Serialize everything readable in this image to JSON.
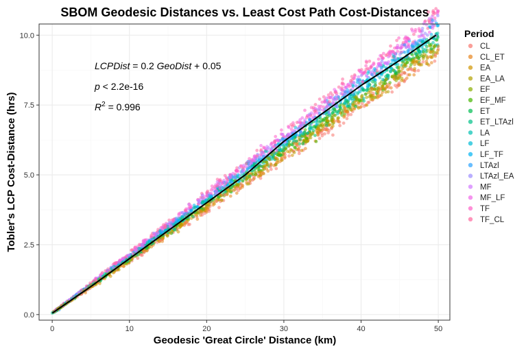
{
  "chart_data": {
    "type": "scatter",
    "title": "SBOM Geodesic Distances vs. Least Cost Path Cost-Distances",
    "xlabel": "Geodesic 'Great Circle' Distance (km)",
    "ylabel": "Tobler's LCP Cost-Distance (hrs)",
    "xlim": [
      -1.7,
      51.5
    ],
    "ylim": [
      -0.2,
      10.4
    ],
    "x_ticks": [
      0,
      10,
      20,
      30,
      40,
      50
    ],
    "y_ticks": [
      0.0,
      2.5,
      5.0,
      7.5,
      10.0
    ],
    "x_tick_labels": [
      "0",
      "10",
      "20",
      "30",
      "40",
      "50"
    ],
    "y_tick_labels": [
      "0.0",
      "2.5",
      "5.0",
      "7.5",
      "10.0"
    ],
    "grid": true,
    "legend": {
      "title": "Period",
      "position": "right",
      "entries": [
        "CL",
        "CL_ET",
        "EA",
        "EA_LA",
        "EF",
        "EF_MF",
        "ET",
        "ET_LTAzl",
        "LA",
        "LF",
        "LF_TF",
        "LTAzl",
        "LTAzl_EA",
        "MF",
        "MF_LF",
        "TF",
        "TF_CL"
      ]
    },
    "series_colors": [
      "#F8766D",
      "#E7851E",
      "#D09400",
      "#B2A100",
      "#89AC00",
      "#45B500",
      "#00BC51",
      "#00C087",
      "#00C0B2",
      "#00BCD6",
      "#00B3F2",
      "#29A3FF",
      "#9C8DFF",
      "#D277FF",
      "#F166E8",
      "#FF61C7",
      "#FF689E"
    ],
    "point_cloud": {
      "x_range": [
        0,
        50
      ],
      "relation": "y ≈ 0.2·x + 0.05",
      "spread_at_x50": 0.4
    },
    "regression_line": {
      "x": [
        0,
        5,
        10,
        15,
        20,
        25,
        30,
        35,
        40,
        45,
        49.7
      ],
      "y": [
        0.05,
        1.0,
        2.0,
        3.0,
        4.0,
        5.0,
        6.2,
        7.2,
        8.2,
        9.1,
        10.0
      ],
      "color": "#000000"
    },
    "annotations": {
      "equation": {
        "lhs": "LCPDist",
        "eq": " = 0.2 ",
        "var": "GeoDist",
        "tail": " + 0.05"
      },
      "pvalue": {
        "var": "p",
        "text": " < 2.2e-16"
      },
      "r2": {
        "var": "R",
        "sup": "2",
        "text": " = 0.996"
      }
    },
    "colors": {
      "panel_bg": "#FFFFFF",
      "grid_major": "#EBEBEB",
      "grid_minor": "#F5F5F5",
      "border": "#333333"
    }
  }
}
